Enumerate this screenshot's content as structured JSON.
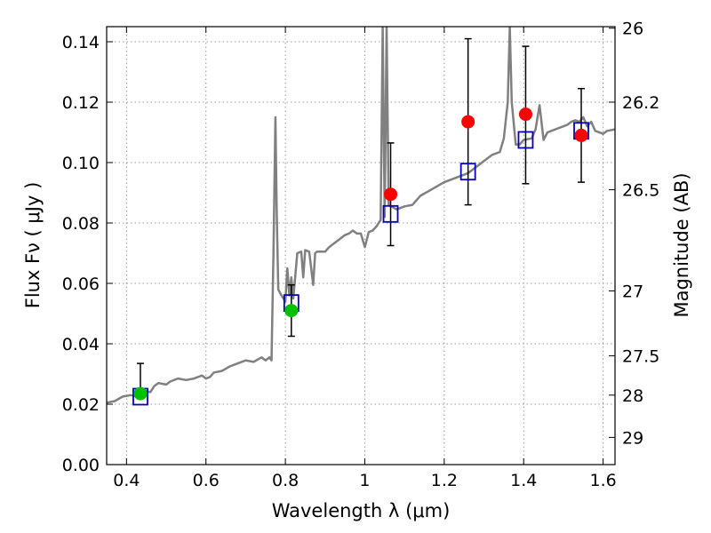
{
  "chart_data": {
    "type": "scatter",
    "xlabel": "Wavelength  λ (μm)",
    "ylabel": "Flux  Fν  ( μJy )",
    "y2label": "Magnitude (AB)",
    "xlim": [
      0.35,
      1.63
    ],
    "ylim": [
      0.0,
      0.145
    ],
    "grid": true,
    "grid_style": "dotted",
    "x_ticks": [
      0.4,
      0.6,
      0.8,
      1.0,
      1.2,
      1.4,
      1.6
    ],
    "x_tick_labels": [
      "0.4",
      "0.6",
      "0.8",
      "1",
      "1.2",
      "1.4",
      "1.6"
    ],
    "y_ticks": [
      0.0,
      0.02,
      0.04,
      0.06,
      0.08,
      0.1,
      0.12,
      0.14
    ],
    "y_tick_labels": [
      "0.00",
      "0.02",
      "0.04",
      "0.06",
      "0.08",
      "0.10",
      "0.12",
      "0.14"
    ],
    "y2_ticks": [
      {
        "label": "26",
        "flux": 0.1445
      },
      {
        "label": "26.2",
        "flux": 0.12
      },
      {
        "label": "26.5",
        "flux": 0.091
      },
      {
        "label": "27",
        "flux": 0.0575
      },
      {
        "label": "27.5",
        "flux": 0.036
      },
      {
        "label": "28",
        "flux": 0.023
      },
      {
        "label": "29",
        "flux": 0.009
      }
    ],
    "colors": {
      "model": "#808080",
      "observed_optical": "#00c000",
      "observed_nir": "#ff0000",
      "model_photometry": "#0000c0",
      "errorbar": "#000000",
      "grid": "#9a9a9a"
    },
    "series": [
      {
        "kind": "model_sed",
        "points": [
          [
            0.35,
            0.0205
          ],
          [
            0.37,
            0.021
          ],
          [
            0.39,
            0.0225
          ],
          [
            0.41,
            0.023
          ],
          [
            0.43,
            0.0225
          ],
          [
            0.44,
            0.0245
          ],
          [
            0.46,
            0.024
          ],
          [
            0.47,
            0.026
          ],
          [
            0.48,
            0.027
          ],
          [
            0.5,
            0.0265
          ],
          [
            0.51,
            0.0275
          ],
          [
            0.53,
            0.0285
          ],
          [
            0.55,
            0.028
          ],
          [
            0.57,
            0.0285
          ],
          [
            0.59,
            0.0295
          ],
          [
            0.6,
            0.0285
          ],
          [
            0.61,
            0.029
          ],
          [
            0.62,
            0.0305
          ],
          [
            0.64,
            0.031
          ],
          [
            0.66,
            0.0325
          ],
          [
            0.68,
            0.0335
          ],
          [
            0.7,
            0.0345
          ],
          [
            0.72,
            0.034
          ],
          [
            0.74,
            0.0355
          ],
          [
            0.75,
            0.0345
          ],
          [
            0.76,
            0.0355
          ],
          [
            0.765,
            0.0345
          ],
          [
            0.77,
            0.07
          ],
          [
            0.775,
            0.115
          ],
          [
            0.778,
            0.085
          ],
          [
            0.782,
            0.058
          ],
          [
            0.79,
            0.056
          ],
          [
            0.8,
            0.054
          ],
          [
            0.805,
            0.065
          ],
          [
            0.81,
            0.056
          ],
          [
            0.815,
            0.062
          ],
          [
            0.82,
            0.055
          ],
          [
            0.83,
            0.07
          ],
          [
            0.84,
            0.0705
          ],
          [
            0.845,
            0.062
          ],
          [
            0.85,
            0.071
          ],
          [
            0.86,
            0.0705
          ],
          [
            0.87,
            0.0595
          ],
          [
            0.875,
            0.07
          ],
          [
            0.88,
            0.0705
          ],
          [
            0.9,
            0.0705
          ],
          [
            0.91,
            0.072
          ],
          [
            0.93,
            0.074
          ],
          [
            0.95,
            0.076
          ],
          [
            0.96,
            0.0765
          ],
          [
            0.97,
            0.0775
          ],
          [
            0.98,
            0.0765
          ],
          [
            0.99,
            0.0765
          ],
          [
            1.0,
            0.072
          ],
          [
            1.01,
            0.077
          ],
          [
            1.02,
            0.0775
          ],
          [
            1.03,
            0.079
          ],
          [
            1.04,
            0.081
          ],
          [
            1.045,
            0.145
          ],
          [
            1.05,
            0.082
          ],
          [
            1.055,
            0.145
          ],
          [
            1.06,
            0.086
          ],
          [
            1.08,
            0.0845
          ],
          [
            1.1,
            0.0855
          ],
          [
            1.12,
            0.086
          ],
          [
            1.14,
            0.089
          ],
          [
            1.16,
            0.0905
          ],
          [
            1.18,
            0.092
          ],
          [
            1.2,
            0.0935
          ],
          [
            1.22,
            0.0945
          ],
          [
            1.24,
            0.0955
          ],
          [
            1.26,
            0.0965
          ],
          [
            1.28,
            0.0985
          ],
          [
            1.3,
            0.1005
          ],
          [
            1.32,
            0.1025
          ],
          [
            1.34,
            0.1035
          ],
          [
            1.35,
            0.108
          ],
          [
            1.36,
            0.12
          ],
          [
            1.365,
            0.145
          ],
          [
            1.37,
            0.12
          ],
          [
            1.38,
            0.106
          ],
          [
            1.39,
            0.106
          ],
          [
            1.4,
            0.1075
          ],
          [
            1.42,
            0.108
          ],
          [
            1.43,
            0.111
          ],
          [
            1.44,
            0.119
          ],
          [
            1.45,
            0.1075
          ],
          [
            1.46,
            0.11
          ],
          [
            1.48,
            0.111
          ],
          [
            1.5,
            0.112
          ],
          [
            1.51,
            0.1125
          ],
          [
            1.52,
            0.1135
          ],
          [
            1.53,
            0.114
          ],
          [
            1.54,
            0.1135
          ],
          [
            1.55,
            0.115
          ],
          [
            1.56,
            0.112
          ],
          [
            1.57,
            0.1135
          ],
          [
            1.58,
            0.1105
          ],
          [
            1.6,
            0.1095
          ],
          [
            1.61,
            0.1105
          ],
          [
            1.63,
            0.111
          ]
        ]
      },
      {
        "kind": "observed_detection",
        "points": [
          {
            "x": 0.435,
            "y": 0.0235,
            "yerr_low": 0.0235,
            "yerr_high": 0.0335
          },
          {
            "x": 0.815,
            "y": 0.051,
            "yerr_low": 0.0425,
            "yerr_high": 0.0595
          }
        ]
      },
      {
        "kind": "observed_nir",
        "points": [
          {
            "x": 1.065,
            "y": 0.0895,
            "yerr_low": 0.0725,
            "yerr_high": 0.1065
          },
          {
            "x": 1.26,
            "y": 0.1135,
            "yerr_low": 0.086,
            "yerr_high": 0.141
          },
          {
            "x": 1.405,
            "y": 0.116,
            "yerr_low": 0.093,
            "yerr_high": 0.1385
          },
          {
            "x": 1.545,
            "y": 0.109,
            "yerr_low": 0.0935,
            "yerr_high": 0.1245
          }
        ]
      },
      {
        "kind": "model_photometry",
        "points": [
          {
            "x": 0.435,
            "y": 0.0225
          },
          {
            "x": 0.815,
            "y": 0.0535
          },
          {
            "x": 1.065,
            "y": 0.083
          },
          {
            "x": 1.26,
            "y": 0.097
          },
          {
            "x": 1.405,
            "y": 0.1075
          },
          {
            "x": 1.545,
            "y": 0.1105
          }
        ]
      }
    ]
  }
}
